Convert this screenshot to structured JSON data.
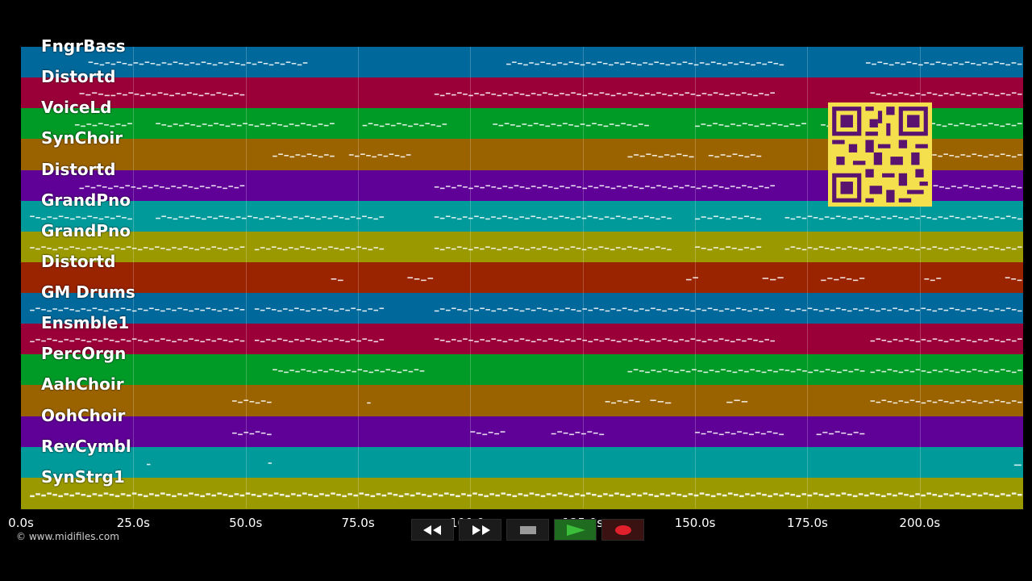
{
  "tracks": [
    {
      "name": "FngrBass",
      "color": "#00689a"
    },
    {
      "name": "Distortd",
      "color": "#9a0037"
    },
    {
      "name": "VoiceLd",
      "color": "#009a27"
    },
    {
      "name": "SynChoir",
      "color": "#9a6300"
    },
    {
      "name": "Distortd",
      "color": "#5f0096"
    },
    {
      "name": "GrandPno",
      "color": "#009a9a"
    },
    {
      "name": "GrandPno",
      "color": "#9a9a00"
    },
    {
      "name": "Distortd",
      "color": "#9a2300"
    },
    {
      "name": "GM Drums",
      "color": "#00689a"
    },
    {
      "name": "Ensmble1",
      "color": "#9a0037"
    },
    {
      "name": "PercOrgn",
      "color": "#009a27"
    },
    {
      "name": "AahChoir",
      "color": "#9a6300"
    },
    {
      "name": "OohChoir",
      "color": "#5f0096"
    },
    {
      "name": "RevCymbl",
      "color": "#009a9a"
    },
    {
      "name": "SynStrg1",
      "color": "#9a9a00"
    }
  ],
  "time_axis": {
    "max_seconds": 223,
    "ticks": [
      {
        "value": 0,
        "label": "0.0s"
      },
      {
        "value": 25,
        "label": "25.0s"
      },
      {
        "value": 50,
        "label": "50.0s"
      },
      {
        "value": 75,
        "label": "75.0s"
      },
      {
        "value": 100,
        "label": "100.0s"
      },
      {
        "value": 125,
        "label": "125.0s"
      },
      {
        "value": 150,
        "label": "150.0s"
      },
      {
        "value": 175,
        "label": "175.0s"
      },
      {
        "value": 200,
        "label": "200.0s"
      }
    ]
  },
  "copyright": "© www.midifiles.com",
  "controls": [
    {
      "name": "rewind-button",
      "icon": "rewind-icon"
    },
    {
      "name": "fast-forward-button",
      "icon": "fast-forward-icon"
    },
    {
      "name": "stop-button",
      "icon": "stop-icon"
    },
    {
      "name": "play-button",
      "icon": "play-icon",
      "color": "#3bbf3b"
    },
    {
      "name": "record-button",
      "icon": "record-icon",
      "color": "#e0202a"
    }
  ],
  "note_segments": [
    [
      [
        15,
        64
      ],
      [
        108,
        170
      ],
      [
        188,
        223
      ]
    ],
    [
      [
        13,
        20
      ],
      [
        20,
        50
      ],
      [
        92,
        168
      ],
      [
        189,
        223
      ]
    ],
    [
      [
        12,
        25
      ],
      [
        30,
        70
      ],
      [
        76,
        95
      ],
      [
        105,
        140
      ],
      [
        150,
        175
      ],
      [
        178,
        223
      ]
    ],
    [
      [
        56,
        70
      ],
      [
        73,
        87
      ],
      [
        135,
        150
      ],
      [
        153,
        165
      ],
      [
        180,
        223
      ]
    ],
    [
      [
        13,
        50
      ],
      [
        92,
        168
      ],
      [
        203,
        223
      ]
    ],
    [
      [
        2,
        25
      ],
      [
        30,
        81
      ],
      [
        92,
        145
      ],
      [
        150,
        165
      ],
      [
        170,
        223
      ]
    ],
    [
      [
        2,
        50
      ],
      [
        52,
        81
      ],
      [
        92,
        145
      ],
      [
        150,
        165
      ],
      [
        170,
        223
      ]
    ],
    [
      [
        69,
        72
      ],
      [
        86,
        92
      ],
      [
        148,
        151
      ],
      [
        165,
        170
      ],
      [
        178,
        188
      ],
      [
        201,
        205
      ],
      [
        219,
        223
      ]
    ],
    [
      [
        2,
        50
      ],
      [
        52,
        81
      ],
      [
        92,
        168
      ],
      [
        170,
        223
      ]
    ],
    [
      [
        2,
        50
      ],
      [
        52,
        81
      ],
      [
        92,
        168
      ],
      [
        189,
        223
      ]
    ],
    [
      [
        56,
        90
      ],
      [
        135,
        170
      ],
      [
        170,
        188
      ],
      [
        189,
        223
      ]
    ],
    [
      [
        47,
        56
      ],
      [
        77,
        78
      ],
      [
        130,
        138
      ],
      [
        140,
        145
      ],
      [
        157,
        162
      ],
      [
        189,
        223
      ]
    ],
    [
      [
        47,
        56
      ],
      [
        100,
        108
      ],
      [
        118,
        130
      ],
      [
        150,
        170
      ],
      [
        177,
        188
      ]
    ],
    [
      [
        28,
        29
      ],
      [
        55,
        56
      ],
      [
        221,
        223
      ]
    ],
    [
      [
        2,
        223
      ]
    ]
  ]
}
